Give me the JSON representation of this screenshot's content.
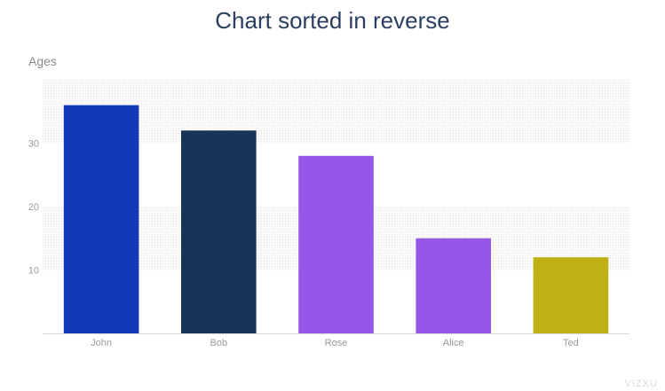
{
  "chart_data": {
    "type": "bar",
    "title": "Chart sorted in reverse",
    "ylabel": "Ages",
    "xlabel": "",
    "categories": [
      "John",
      "Bob",
      "Rose",
      "Alice",
      "Ted"
    ],
    "values": [
      36,
      32,
      28,
      15,
      12
    ],
    "colors": [
      "#1339b7",
      "#163557",
      "#9657e8",
      "#9657e8",
      "#bfb014"
    ],
    "yticks": [
      10,
      20,
      30
    ],
    "ylim": [
      0,
      40
    ],
    "grid": "alternating-bands",
    "legend": "none"
  },
  "watermark": "VIZXU",
  "style": {
    "band_color": "#f2f2f2",
    "axis_color": "#d8d8d8",
    "tick_label_color": "#9a9a9a",
    "title_color": "#2a3f5f"
  }
}
